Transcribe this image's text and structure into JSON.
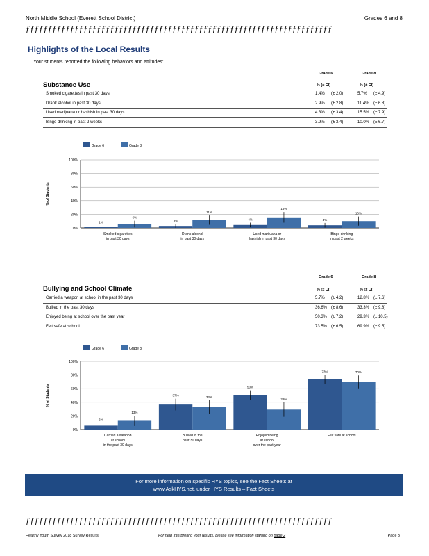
{
  "header": {
    "school": "North Middle School (Everett School District)",
    "grades": "Grades 6 and 8"
  },
  "rule_glyphs": "ƒƒƒƒƒƒƒƒƒƒƒƒƒƒƒƒƒƒƒƒƒƒƒƒƒƒƒƒƒƒƒƒƒƒƒƒƒƒƒƒƒƒƒƒƒƒƒƒƒƒƒƒƒƒƒƒƒƒƒƒƒƒƒƒƒƒƒƒƒ",
  "highlights": {
    "title": "Highlights of the Local Results",
    "subtitle": "Your students reported the following behaviors and attitudes:"
  },
  "substance": {
    "title": "Substance Use",
    "grade6": "Grade 6",
    "grade8": "Grade 8",
    "pct_ci": "% (± CI)",
    "rows": [
      {
        "label": "Smoked cigarettes in past 30 days",
        "g6": "1.4%",
        "g6ci": "(± 2.0)",
        "g8": "5.7%",
        "g8ci": "(± 4.9)"
      },
      {
        "label": "Drank alcohol in past 30 days",
        "g6": "2.9%",
        "g6ci": "(± 2.8)",
        "g8": "11.4%",
        "g8ci": "(± 6.8)"
      },
      {
        "label": "Used marijuana or hashish in past 30 days",
        "g6": "4.3%",
        "g6ci": "(± 3.4)",
        "g8": "15.5%",
        "g8ci": "(± 7.9)"
      },
      {
        "label": "Binge drinking in past 2 weeks",
        "g6": "3.9%",
        "g6ci": "(± 3.4)",
        "g8": "10.0%",
        "g8ci": "(± 6.7)"
      }
    ]
  },
  "bullying": {
    "title": "Bullying and School Climate",
    "grade6": "Grade 6",
    "grade8": "Grade 8",
    "pct_ci": "% (± CI)",
    "rows": [
      {
        "label": "Carried a weapon at school in the past 30 days",
        "g6": "5.7%",
        "g6ci": "(± 4.2)",
        "g8": "12.8%",
        "g8ci": "(± 7.6)"
      },
      {
        "label": "Bullied in the past 30 days",
        "g6": "36.6%",
        "g6ci": "(± 8.6)",
        "g8": "33.3%",
        "g8ci": "(± 9.8)"
      },
      {
        "label": "Enjoyed being at school over the past year",
        "g6": "50.3%",
        "g6ci": "(± 7.2)",
        "g8": "29.3%",
        "g8ci": "(± 10.5)"
      },
      {
        "label": "Felt safe at school",
        "g6": "73.5%",
        "g6ci": "(± 6.5)",
        "g8": "69.9%",
        "g8ci": "(± 9.5)"
      }
    ]
  },
  "chart_data": [
    {
      "type": "bar",
      "ylabel": "% of Students",
      "ylim": [
        0,
        100
      ],
      "yticks": [
        "0%",
        "20%",
        "40%",
        "60%",
        "80%",
        "100%"
      ],
      "legend": "top",
      "categories": [
        [
          "Smoked cigarettes",
          "in past 30 days"
        ],
        [
          "Drank alcohol",
          "in past 30 days"
        ],
        [
          "Used marijuana or",
          "hashish in past 30 days"
        ],
        [
          "Binge drinking",
          "in past 2 weeks"
        ]
      ],
      "series": [
        {
          "name": "Grade 6",
          "color": "#2f5790",
          "values": [
            1.4,
            2.9,
            4.3,
            3.9
          ],
          "ci": [
            2.0,
            2.8,
            3.4,
            3.4
          ],
          "labels": [
            "1%",
            "3%",
            "4%",
            "4%"
          ]
        },
        {
          "name": "Grade 8",
          "color": "#3f6fa8",
          "values": [
            5.7,
            11.4,
            15.5,
            10.0
          ],
          "ci": [
            4.9,
            6.8,
            7.9,
            6.7
          ],
          "labels": [
            "6%",
            "11%",
            "15%",
            "10%"
          ]
        }
      ]
    },
    {
      "type": "bar",
      "ylabel": "% of Students",
      "ylim": [
        0,
        100
      ],
      "yticks": [
        "0%",
        "20%",
        "40%",
        "60%",
        "80%",
        "100%"
      ],
      "legend": "top",
      "categories": [
        [
          "Carried a weapon",
          "at school",
          "in the past 30 days"
        ],
        [
          "Bullied in the",
          "past 30 days"
        ],
        [
          "Enjoyed being",
          "at school",
          "over the past year"
        ],
        [
          "Felt safe at school"
        ]
      ],
      "series": [
        {
          "name": "Grade 6",
          "color": "#2f5790",
          "values": [
            5.7,
            36.6,
            50.3,
            73.5
          ],
          "ci": [
            4.2,
            8.6,
            7.2,
            6.5
          ],
          "labels": [
            "6%",
            "37%",
            "50%",
            "73%"
          ]
        },
        {
          "name": "Grade 8",
          "color": "#3f6fa8",
          "values": [
            12.8,
            33.3,
            29.3,
            69.9
          ],
          "ci": [
            7.6,
            9.8,
            10.5,
            9.5
          ],
          "labels": [
            "13%",
            "33%",
            "29%",
            "70%"
          ]
        }
      ]
    }
  ],
  "banner": {
    "line1": "For more information on specific HYS topics, see the Fact Sheets at",
    "line2": "www.AskHYS.net, under HYS Results – Fact Sheets"
  },
  "footer": {
    "left": "Healthy Youth Survey 2018 Survey Results",
    "middle": "For help interpreting your results, please see information starting on",
    "page_link": "page 2",
    "right": "Page 3"
  }
}
